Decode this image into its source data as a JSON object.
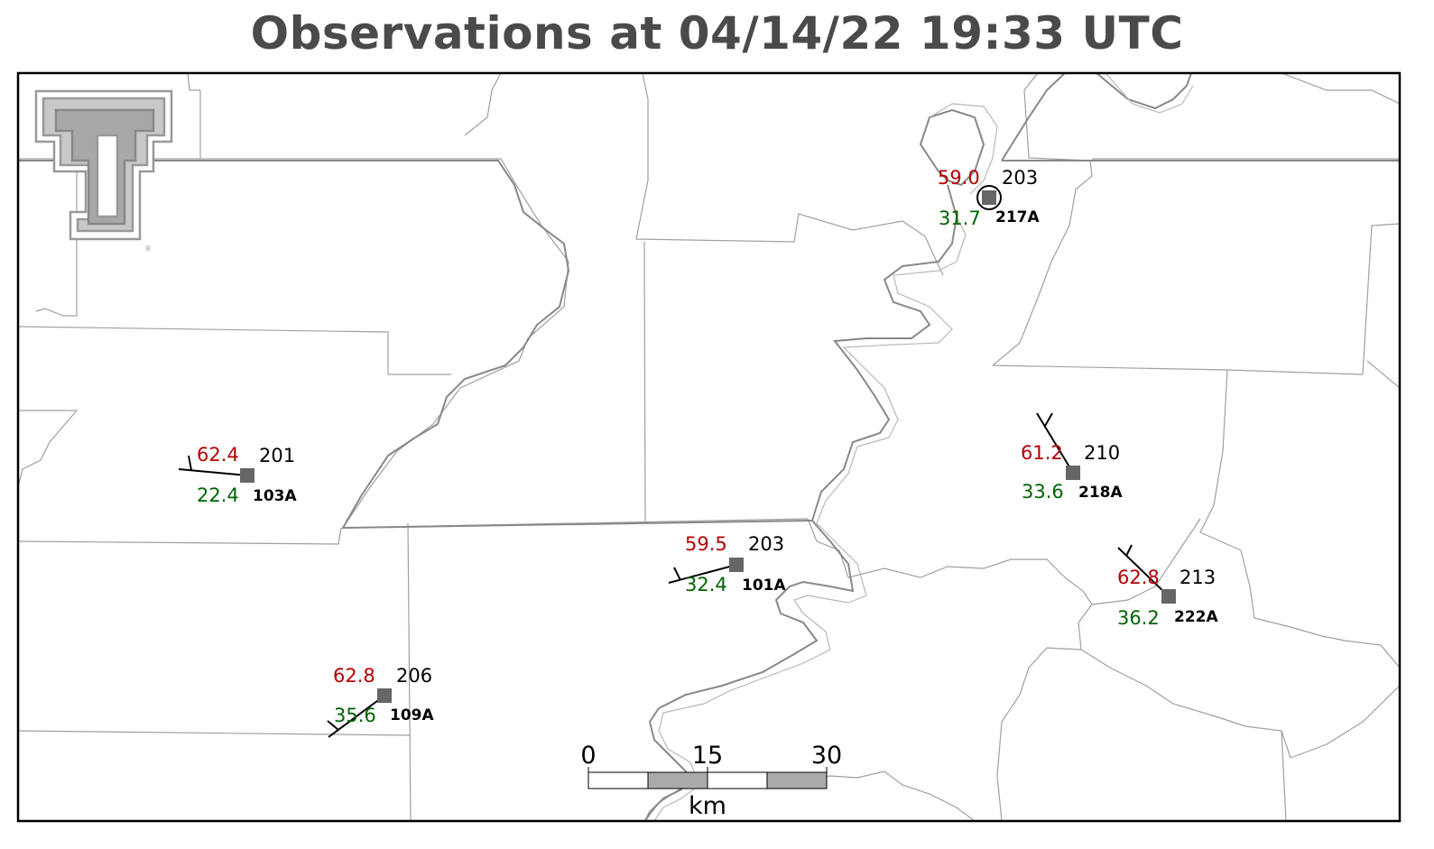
{
  "title": "Observations at 04/14/22 19:33 UTC",
  "stations": [
    {
      "id": "217A",
      "temp": "59.0",
      "dew": "31.7",
      "dir": "203",
      "calm": true
    },
    {
      "id": "103A",
      "temp": "62.4",
      "dew": "22.4",
      "dir": "201",
      "calm": false
    },
    {
      "id": "218A",
      "temp": "61.2",
      "dew": "33.6",
      "dir": "210",
      "calm": false
    },
    {
      "id": "101A",
      "temp": "59.5",
      "dew": "32.4",
      "dir": "203",
      "calm": false
    },
    {
      "id": "222A",
      "temp": "62.8",
      "dew": "36.2",
      "dir": "213",
      "calm": false
    },
    {
      "id": "109A",
      "temp": "62.8",
      "dew": "35.6",
      "dir": "206",
      "calm": false
    }
  ],
  "scale_bar": {
    "labels": [
      "0",
      "15",
      "30"
    ],
    "unit": "km"
  },
  "colors": {
    "temperature": "#b30000",
    "dewpoint": "#006400",
    "station": "#666666",
    "border": "#000000",
    "county_lines": "#999999",
    "river": "#888888"
  },
  "logo": {
    "name": "Texas Tech Double T logo",
    "mark": "®"
  }
}
